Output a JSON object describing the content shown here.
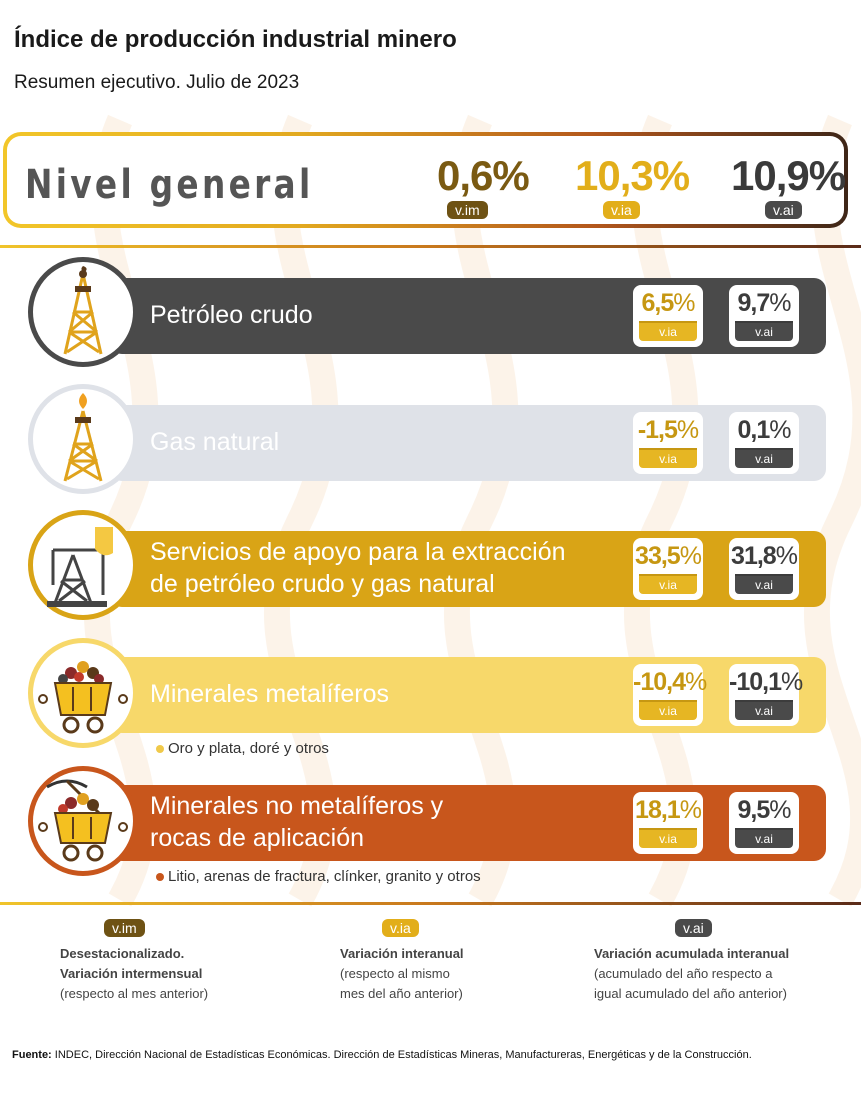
{
  "title": "Índice de producción industrial minero",
  "subtitle": "Resumen ejecutivo. Julio de 2023",
  "general": {
    "label": "Nivel general",
    "vim_value": "0,6%",
    "vim_tag": "v.im",
    "via_value": "10,3%",
    "via_tag": "v.ia",
    "vai_value": "10,9%",
    "vai_tag": "v.ai"
  },
  "rows": [
    {
      "label": "Petróleo crudo",
      "icon": "oil-derrick-icon",
      "color": "#4a4a4a",
      "via_num": "6,5",
      "vai_num": "9,7",
      "pct": "%",
      "via_tag": "v.ia",
      "vai_tag": "v.ai"
    },
    {
      "label": "Gas natural",
      "icon": "gas-derrick-icon",
      "color": "#dfe2e8",
      "via_num": "-1,5",
      "vai_num": "0,1",
      "pct": "%",
      "via_tag": "v.ia",
      "vai_tag": "v.ai"
    },
    {
      "label_line1": "Servicios de apoyo para la extracción",
      "label_line2": "de petróleo crudo y gas natural",
      "icon": "pumpjack-icon",
      "color": "#d9a416",
      "via_num": "33,5",
      "vai_num": "31,8",
      "pct": "%",
      "via_tag": "v.ia",
      "vai_tag": "v.ai"
    },
    {
      "label": "Minerales metalíferos",
      "icon": "mine-cart-icon",
      "color": "#f7d86a",
      "via_num": "-10,4",
      "vai_num": "-10,1",
      "pct": "%",
      "via_tag": "v.ia",
      "vai_tag": "v.ai",
      "note": "Oro y plata, doré y otros",
      "note_color": "#f0c94a"
    },
    {
      "label_line1": "Minerales no metalíferos y",
      "label_line2": "rocas de aplicación",
      "icon": "mine-cart-pickaxe-icon",
      "color": "#c8561c",
      "via_num": "18,1",
      "vai_num": "9,5",
      "pct": "%",
      "via_tag": "v.ia",
      "vai_tag": "v.ai",
      "note": "Litio, arenas de fractura, clínker, granito y otros",
      "note_color": "#c8561c"
    }
  ],
  "legend": {
    "vim_tag": "v.im",
    "vim_title1": "Desestacionalizado.",
    "vim_title2": "Variación intermensual",
    "vim_desc": "(respecto al mes anterior)",
    "via_tag": "v.ia",
    "via_title": "Variación interanual",
    "via_desc1": "(respecto al mismo",
    "via_desc2": "mes del año anterior)",
    "vai_tag": "v.ai",
    "vai_title": "Variación acumulada interanual",
    "vai_desc1": "(acumulado del año respecto a",
    "vai_desc2": "igual acumulado del año anterior)"
  },
  "source": {
    "label": "Fuente:",
    "text": "INDEC, Dirección Nacional de Estadísticas Económicas. Dirección de Estadísticas Mineras, Manufactureras, Energéticas y de la Construcción."
  },
  "colors": {
    "vim": "#6e5214",
    "via": "#e2ae1a",
    "vai": "#4a4a4a",
    "petroleo": "#4a4a4a",
    "gas": "#dfe2e8",
    "servicios": "#d9a416",
    "metaliferos": "#f7d86a",
    "no_metaliferos": "#c8561c"
  }
}
